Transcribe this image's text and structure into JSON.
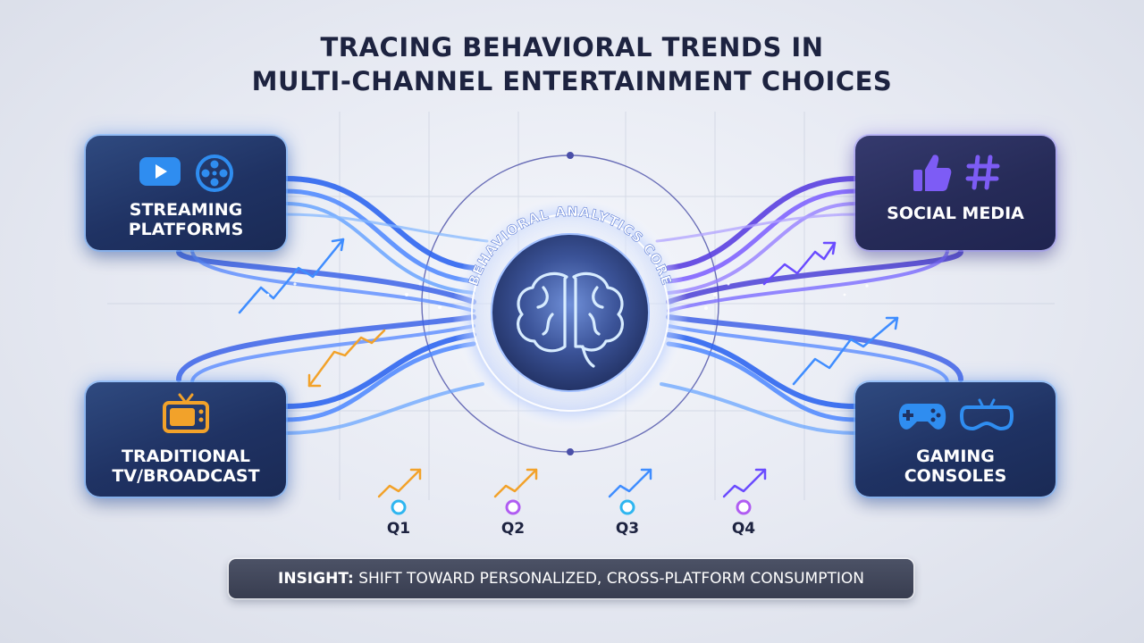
{
  "title": {
    "line1": "TRACING BEHAVIORAL TRENDS IN",
    "line2": "MULTI-CHANNEL ENTERTAINMENT CHOICES"
  },
  "core": {
    "ring_label": "BEHAVIORAL ANALYTICS CORE",
    "icon": "brain-icon"
  },
  "channels": {
    "streaming": {
      "label": "STREAMING\nPLATFORMS",
      "icons": [
        "play-icon",
        "film-reel-icon"
      ]
    },
    "social": {
      "label": "SOCIAL MEDIA",
      "icons": [
        "thumbs-up-icon",
        "hashtag-icon"
      ]
    },
    "tv": {
      "label": "TRADITIONAL\nTV/BROADCAST",
      "icons": [
        "tv-icon"
      ]
    },
    "gaming": {
      "label": "GAMING\nCONSOLES",
      "icons": [
        "gamepad-icon",
        "vr-headset-icon"
      ]
    }
  },
  "timeline": {
    "quarters": [
      "Q1",
      "Q2",
      "Q3",
      "Q4"
    ]
  },
  "insight": {
    "prefix": "INSIGHT:",
    "text": " SHIFT TOWARD PERSONALIZED, CROSS-PLATFORM CONSUMPTION"
  },
  "colors": {
    "blue_flow": "#3f7bff",
    "purple_flow": "#6a4bff",
    "orange_trend": "#f2a22a",
    "card_blue": "#1f3263",
    "card_purple": "#262b58"
  }
}
